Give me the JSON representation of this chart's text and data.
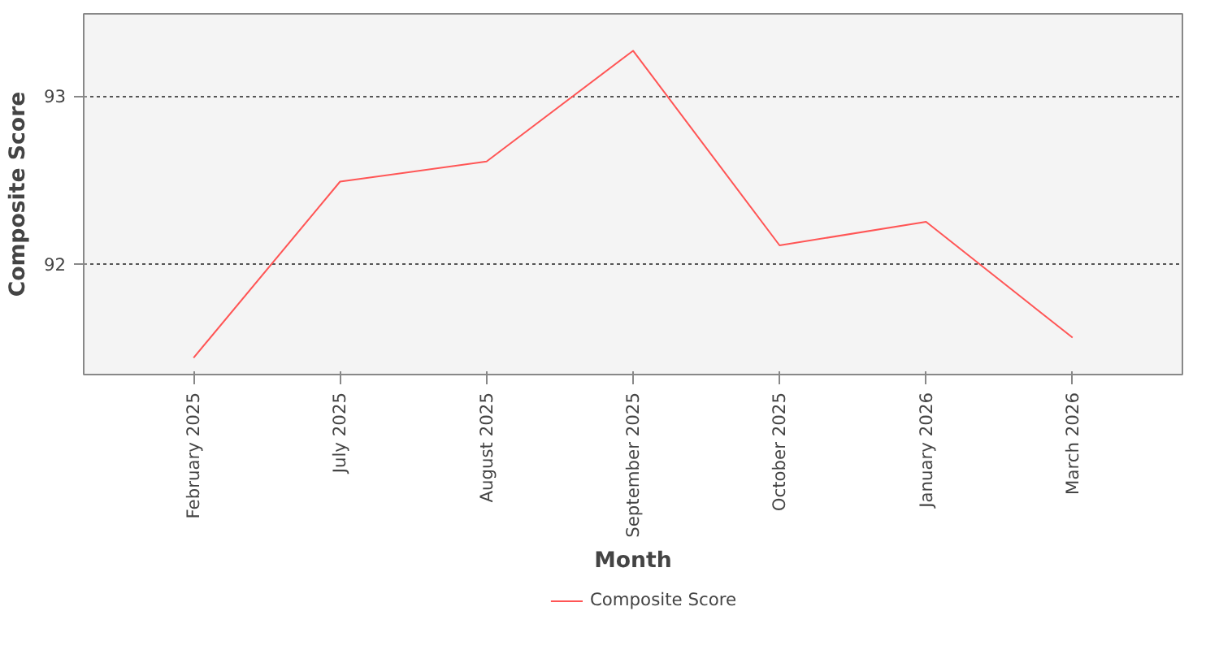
{
  "chart_data": {
    "type": "line",
    "xlabel": "Month",
    "ylabel": "Composite Score",
    "categories": [
      "February 2025",
      "July 2025",
      "August 2025",
      "September 2025",
      "October 2025",
      "January 2026",
      "March 2026"
    ],
    "series": [
      {
        "name": "Composite Score",
        "color": "#ff5555",
        "values": [
          91.44,
          92.49,
          92.61,
          93.27,
          92.11,
          92.25,
          91.56
        ]
      }
    ],
    "ylim": [
      91.34,
      93.49
    ],
    "yticks": [
      92,
      93
    ],
    "grid": "y",
    "legend": "bottom"
  }
}
